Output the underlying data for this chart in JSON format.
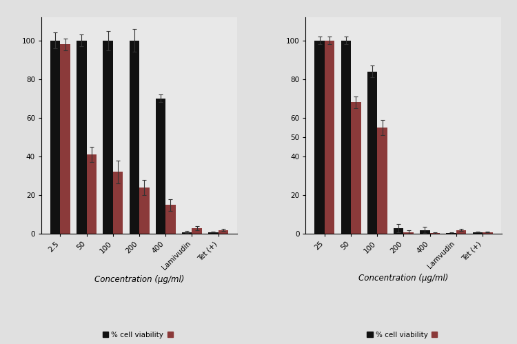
{
  "left": {
    "categories": [
      "2.5",
      "50",
      "100",
      "200",
      "400",
      "Lamivudin",
      "Tet (+)"
    ],
    "black_vals": [
      100,
      100,
      100,
      100,
      70,
      1,
      1
    ],
    "black_err": [
      4,
      3,
      5,
      6,
      2,
      0.5,
      0.3
    ],
    "red_vals": [
      98,
      41,
      32,
      24,
      15,
      3,
      2
    ],
    "red_err": [
      3,
      4,
      6,
      4,
      3,
      1,
      0.5
    ],
    "xlabel": "Concentration (μg/ml)",
    "ylim": [
      0,
      112
    ],
    "yticks": [
      0,
      20,
      40,
      60,
      80,
      100
    ]
  },
  "right": {
    "categories": [
      "25",
      "50",
      "100",
      "200",
      "400",
      "Lamvudin",
      "Tet (+)"
    ],
    "black_vals": [
      100,
      100,
      84,
      3,
      2,
      0.5,
      1
    ],
    "black_err": [
      2,
      2,
      3,
      2,
      1.5,
      0.3,
      0.3
    ],
    "red_vals": [
      100,
      68,
      55,
      1,
      0.5,
      2,
      1
    ],
    "red_err": [
      2,
      3,
      4,
      1,
      0.5,
      0.5,
      0.3
    ],
    "xlabel": "Concentration (μg/ml)",
    "ylim": [
      0,
      112
    ],
    "yticks": [
      0,
      20,
      40,
      50,
      60,
      80,
      100
    ]
  },
  "bar_width": 0.38,
  "black_color": "#111111",
  "red_color": "#8b3a3a",
  "legend_label_black": "% cell viability",
  "background_color": "#e8e8e8",
  "fig_bg": "#e0e0e0"
}
